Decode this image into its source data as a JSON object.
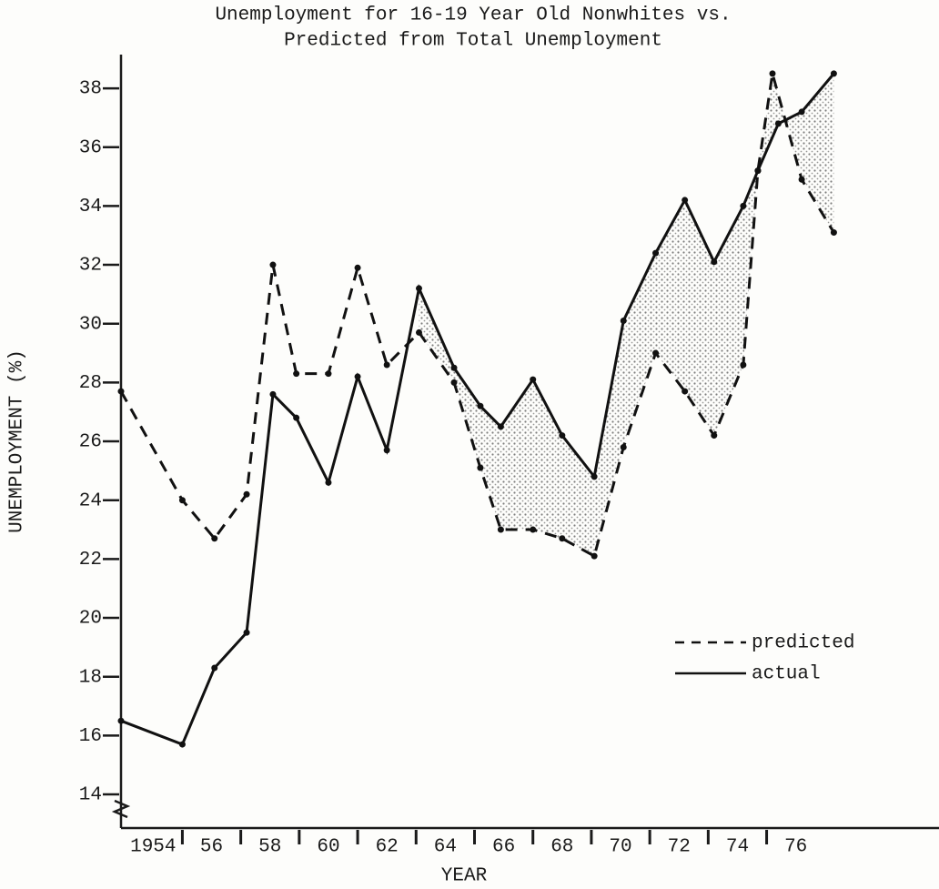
{
  "chart_data": {
    "type": "line",
    "title": "Unemployment for 16-19 Year Old Nonwhites vs.",
    "subtitle": "Predicted from Total Unemployment",
    "x_label": "YEAR",
    "y_label": "UNEMPLOYMENT (%)",
    "series": [
      {
        "name": "predicted",
        "color": "#111111",
        "dashed": true,
        "x": [
          1952.9,
          1955.0,
          1956.1,
          1957.2,
          1958.1,
          1958.9,
          1960.0,
          1961.0,
          1962.0,
          1963.1,
          1964.3,
          1965.2,
          1965.9,
          1967.0,
          1968.0,
          1969.1,
          1970.1,
          1971.2,
          1972.2,
          1973.2,
          1974.2,
          1974.7,
          1975.2,
          1976.2,
          1977.3
        ],
        "values": [
          27.7,
          24.0,
          22.7,
          24.2,
          32.0,
          28.3,
          28.3,
          31.9,
          28.6,
          29.7,
          28.0,
          25.1,
          23.0,
          23.0,
          22.7,
          22.1,
          25.8,
          29.0,
          27.7,
          26.2,
          28.6,
          35.2,
          38.5,
          34.9,
          33.1
        ]
      },
      {
        "name": "actual",
        "color": "#111111",
        "dashed": false,
        "x": [
          1952.9,
          1955.0,
          1956.1,
          1957.2,
          1958.1,
          1958.9,
          1960.0,
          1961.0,
          1962.0,
          1963.1,
          1964.3,
          1965.2,
          1965.9,
          1967.0,
          1968.0,
          1969.1,
          1970.1,
          1971.2,
          1972.2,
          1973.2,
          1974.2,
          1974.7,
          1975.4,
          1976.2,
          1977.3
        ],
        "values": [
          16.5,
          15.7,
          18.3,
          19.5,
          27.6,
          26.8,
          24.6,
          28.2,
          25.7,
          31.2,
          28.5,
          27.2,
          26.5,
          28.1,
          26.2,
          24.8,
          30.1,
          32.4,
          34.2,
          32.1,
          34.0,
          35.2,
          36.8,
          37.2,
          38.5
        ]
      }
    ],
    "xlim": [
      1952.9,
      1980.9
    ],
    "xticks": [
      {
        "value": 1954,
        "label": "1954"
      },
      {
        "value": 1956,
        "label": "56"
      },
      {
        "value": 1958,
        "label": "58"
      },
      {
        "value": 1960,
        "label": "60"
      },
      {
        "value": 1962,
        "label": "62"
      },
      {
        "value": 1964,
        "label": "64"
      },
      {
        "value": 1966,
        "label": "66"
      },
      {
        "value": 1968,
        "label": "68"
      },
      {
        "value": 1970,
        "label": "70"
      },
      {
        "value": 1972,
        "label": "72"
      },
      {
        "value": 1974,
        "label": "74"
      },
      {
        "value": 1976,
        "label": "76"
      }
    ],
    "xticks_minor": [
      1955,
      1957,
      1959,
      1961,
      1963,
      1965,
      1967,
      1969,
      1971,
      1973,
      1975
    ],
    "ylim": [
      12.9,
      39.1
    ],
    "yticks": [
      14,
      16,
      18,
      20,
      22,
      24,
      26,
      28,
      30,
      32,
      34,
      36,
      38
    ],
    "shade_from": 1963.1,
    "grid": false,
    "legend": "lower right"
  }
}
